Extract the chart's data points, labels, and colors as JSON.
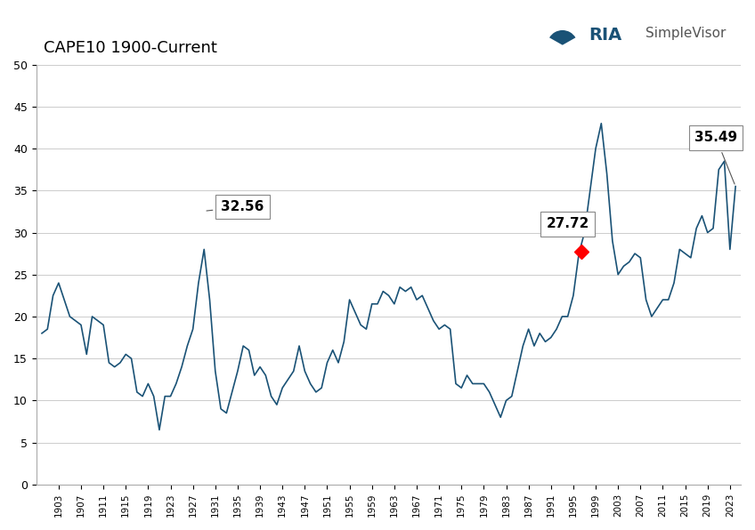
{
  "title": "CAPE10 1900-Current",
  "line_color": "#1a5276",
  "background_color": "#ffffff",
  "grid_color": "#cccccc",
  "ylim": [
    0,
    50
  ],
  "yticks": [
    0,
    5,
    10,
    15,
    20,
    25,
    30,
    35,
    40,
    45,
    50
  ],
  "annotation_1929": {
    "year": 1929.5,
    "value": 32.56,
    "label": "32.56"
  },
  "annotation_1996": {
    "year": 1996.5,
    "value": 27.72,
    "label": "27.72"
  },
  "annotation_current": {
    "year": 2021.5,
    "value": 35.49,
    "label": "35.49"
  },
  "cape_data": [
    [
      1900,
      18.0
    ],
    [
      1901,
      18.5
    ],
    [
      1902,
      22.5
    ],
    [
      1903,
      24.0
    ],
    [
      1904,
      22.0
    ],
    [
      1905,
      20.0
    ],
    [
      1906,
      19.5
    ],
    [
      1907,
      19.0
    ],
    [
      1908,
      15.5
    ],
    [
      1909,
      20.0
    ],
    [
      1910,
      19.5
    ],
    [
      1911,
      19.0
    ],
    [
      1912,
      14.5
    ],
    [
      1913,
      14.0
    ],
    [
      1914,
      14.5
    ],
    [
      1915,
      15.5
    ],
    [
      1916,
      15.0
    ],
    [
      1917,
      11.0
    ],
    [
      1918,
      10.5
    ],
    [
      1919,
      12.0
    ],
    [
      1920,
      10.5
    ],
    [
      1921,
      6.5
    ],
    [
      1922,
      10.5
    ],
    [
      1923,
      10.5
    ],
    [
      1924,
      12.0
    ],
    [
      1925,
      14.0
    ],
    [
      1926,
      16.5
    ],
    [
      1927,
      18.5
    ],
    [
      1928,
      24.0
    ],
    [
      1929,
      28.0
    ],
    [
      1930,
      22.0
    ],
    [
      1931,
      13.5
    ],
    [
      1932,
      9.0
    ],
    [
      1933,
      8.5
    ],
    [
      1934,
      11.0
    ],
    [
      1935,
      13.5
    ],
    [
      1936,
      16.5
    ],
    [
      1937,
      16.0
    ],
    [
      1938,
      13.0
    ],
    [
      1939,
      14.0
    ],
    [
      1940,
      13.0
    ],
    [
      1941,
      10.5
    ],
    [
      1942,
      9.5
    ],
    [
      1943,
      11.5
    ],
    [
      1944,
      12.5
    ],
    [
      1945,
      13.5
    ],
    [
      1946,
      16.5
    ],
    [
      1947,
      13.5
    ],
    [
      1948,
      12.0
    ],
    [
      1949,
      11.0
    ],
    [
      1950,
      11.5
    ],
    [
      1951,
      14.5
    ],
    [
      1952,
      16.0
    ],
    [
      1953,
      14.5
    ],
    [
      1954,
      17.0
    ],
    [
      1955,
      22.0
    ],
    [
      1956,
      20.5
    ],
    [
      1957,
      19.0
    ],
    [
      1958,
      18.5
    ],
    [
      1959,
      21.5
    ],
    [
      1960,
      21.5
    ],
    [
      1961,
      23.0
    ],
    [
      1962,
      22.5
    ],
    [
      1963,
      21.5
    ],
    [
      1964,
      23.5
    ],
    [
      1965,
      23.0
    ],
    [
      1966,
      23.5
    ],
    [
      1967,
      22.0
    ],
    [
      1968,
      22.5
    ],
    [
      1969,
      21.0
    ],
    [
      1970,
      19.5
    ],
    [
      1971,
      18.5
    ],
    [
      1972,
      19.0
    ],
    [
      1973,
      18.5
    ],
    [
      1974,
      12.0
    ],
    [
      1975,
      11.5
    ],
    [
      1976,
      13.0
    ],
    [
      1977,
      12.0
    ],
    [
      1978,
      12.0
    ],
    [
      1979,
      12.0
    ],
    [
      1980,
      11.0
    ],
    [
      1981,
      9.5
    ],
    [
      1982,
      8.0
    ],
    [
      1983,
      10.0
    ],
    [
      1984,
      10.5
    ],
    [
      1985,
      13.5
    ],
    [
      1986,
      16.5
    ],
    [
      1987,
      18.5
    ],
    [
      1988,
      16.5
    ],
    [
      1989,
      18.0
    ],
    [
      1990,
      17.0
    ],
    [
      1991,
      17.5
    ],
    [
      1992,
      18.5
    ],
    [
      1993,
      20.0
    ],
    [
      1994,
      20.0
    ],
    [
      1995,
      22.5
    ],
    [
      1996,
      27.5
    ],
    [
      1997,
      30.0
    ],
    [
      1998,
      35.0
    ],
    [
      1999,
      40.0
    ],
    [
      2000,
      43.0
    ],
    [
      2001,
      37.0
    ],
    [
      2002,
      29.0
    ],
    [
      2003,
      25.0
    ],
    [
      2004,
      26.0
    ],
    [
      2005,
      26.5
    ],
    [
      2006,
      27.5
    ],
    [
      2007,
      27.0
    ],
    [
      2008,
      22.0
    ],
    [
      2009,
      20.0
    ],
    [
      2010,
      21.0
    ],
    [
      2011,
      22.0
    ],
    [
      2012,
      22.0
    ],
    [
      2013,
      24.0
    ],
    [
      2014,
      28.0
    ],
    [
      2015,
      27.5
    ],
    [
      2016,
      27.0
    ],
    [
      2017,
      30.5
    ],
    [
      2018,
      32.0
    ],
    [
      2019,
      30.0
    ],
    [
      2020,
      30.5
    ],
    [
      2021,
      37.5
    ],
    [
      2022,
      38.5
    ],
    [
      2023,
      28.0
    ],
    [
      2024,
      35.5
    ]
  ]
}
